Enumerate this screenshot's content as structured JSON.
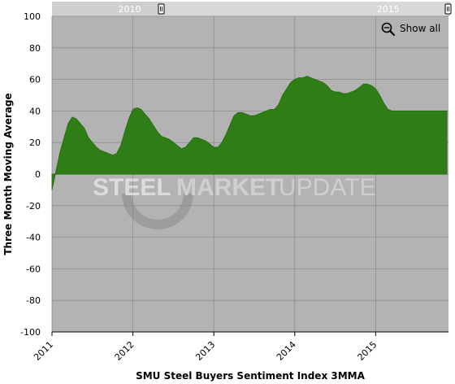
{
  "chart_data": {
    "type": "area",
    "title": "",
    "xlabel": "SMU Steel Buyers Sentiment Index 3MMA",
    "ylabel": "Three Month Moving Average",
    "ylim": [
      -100,
      100
    ],
    "yticks": [
      100,
      80,
      60,
      40,
      20,
      0,
      -20,
      -40,
      -60,
      -80,
      -100
    ],
    "xlim": [
      2011.0,
      2015.9
    ],
    "xticks": [
      {
        "value": 2011,
        "label": "2011"
      },
      {
        "value": 2012,
        "label": "2012"
      },
      {
        "value": 2013,
        "label": "2013"
      },
      {
        "value": 2014,
        "label": "2014"
      },
      {
        "value": 2015,
        "label": "2015"
      }
    ],
    "grid": true,
    "series": [
      {
        "color": "#2e7d17",
        "x": [
          2011.0,
          2011.05,
          2011.1,
          2011.15,
          2011.2,
          2011.25,
          2011.3,
          2011.35,
          2011.4,
          2011.45,
          2011.5,
          2011.55,
          2011.6,
          2011.65,
          2011.7,
          2011.75,
          2011.8,
          2011.85,
          2011.9,
          2011.95,
          2012.0,
          2012.05,
          2012.1,
          2012.15,
          2012.2,
          2012.25,
          2012.3,
          2012.35,
          2012.4,
          2012.45,
          2012.5,
          2012.55,
          2012.6,
          2012.65,
          2012.7,
          2012.75,
          2012.8,
          2012.85,
          2012.9,
          2012.95,
          2013.0,
          2013.05,
          2013.1,
          2013.15,
          2013.2,
          2013.25,
          2013.3,
          2013.35,
          2013.4,
          2013.45,
          2013.5,
          2013.55,
          2013.6,
          2013.65,
          2013.7,
          2013.75,
          2013.8,
          2013.85,
          2013.9,
          2013.95,
          2014.0,
          2014.05,
          2014.1,
          2014.15,
          2014.2,
          2014.25,
          2014.3,
          2014.35,
          2014.4,
          2014.45,
          2014.5,
          2014.55,
          2014.6,
          2014.65,
          2014.7,
          2014.75,
          2014.8,
          2014.85,
          2014.9,
          2014.95,
          2015.0,
          2015.05,
          2015.1,
          2015.15,
          2015.2,
          2015.25,
          2015.3,
          2015.35,
          2015.4,
          2015.45,
          2015.5,
          2015.55,
          2015.6,
          2015.65,
          2015.7,
          2015.75,
          2015.8,
          2015.85,
          2015.88
        ],
        "y": [
          -10,
          2,
          14,
          23,
          32,
          36,
          35,
          32,
          29,
          23,
          20,
          17,
          15,
          14,
          13,
          12,
          13,
          18,
          27,
          35,
          41,
          42,
          41,
          38,
          35,
          31,
          27,
          24,
          23,
          22,
          20,
          18,
          16,
          17,
          20,
          23,
          23,
          22,
          21,
          19,
          17,
          17,
          20,
          25,
          31,
          37,
          39,
          39,
          38,
          37,
          37,
          38,
          39,
          40,
          41,
          41,
          44,
          50,
          54,
          58,
          60,
          61,
          61,
          62,
          61,
          60,
          59,
          58,
          56,
          53,
          52,
          52,
          51,
          51,
          52,
          53,
          55,
          57,
          57,
          56,
          54,
          50,
          45,
          41,
          40,
          40,
          40,
          40,
          40,
          40,
          40,
          40,
          40,
          40,
          40,
          40,
          40,
          40,
          40
        ]
      }
    ]
  },
  "watermark": {
    "brand_a": "STEEL",
    "brand_b": "MARKET",
    "brand_c": "UPDATE"
  },
  "navigator": {
    "labels": [
      {
        "value": 2010,
        "label": "2010"
      },
      {
        "value": 2015,
        "label": "2015"
      }
    ]
  },
  "toolbar": {
    "show_all_label": "Show all",
    "icon": "zoom-out-icon"
  },
  "colors": {
    "plot_bg": "#b3b3b3",
    "area_fill": "#2e7d17",
    "area_stroke": "#2a6f14",
    "grid": "#8e8e8e",
    "navigator_bg": "#c9c9c9"
  }
}
